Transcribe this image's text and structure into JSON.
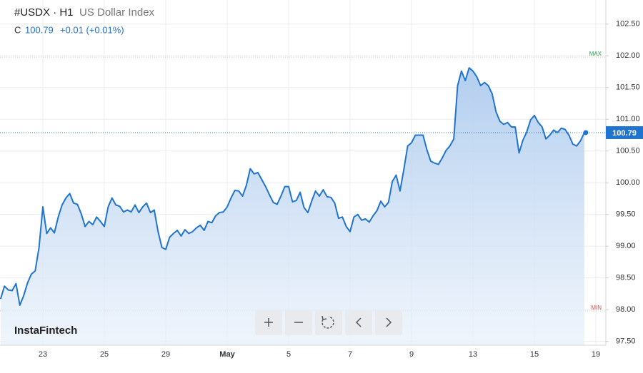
{
  "chart_data": {
    "type": "area",
    "title": "#USDX · H1",
    "subtitle": "US Dollar Index",
    "close_label": "C",
    "close": 100.79,
    "change": "+0.01 (+0.01%)",
    "brand": "InstaFintech",
    "color": "#1f74d0",
    "grid": true,
    "max_level": {
      "value": 101.98,
      "label": "MAX"
    },
    "min_level": {
      "value": 97.98,
      "label": "MIN"
    },
    "ylim": [
      97.44,
      102.88
    ],
    "yticks": [
      {
        "value": 97.5,
        "label": "97.50"
      },
      {
        "value": 98,
        "label": "98.00"
      },
      {
        "value": 98.5,
        "label": "98.50"
      },
      {
        "value": 99,
        "label": "99.00"
      },
      {
        "value": 99.5,
        "label": "99.50"
      },
      {
        "value": 100,
        "label": "100.00"
      },
      {
        "value": 100.5,
        "label": "100.50"
      },
      {
        "value": 101,
        "label": "101.00"
      },
      {
        "value": 101.5,
        "label": "101.50"
      },
      {
        "value": 102,
        "label": "102.00"
      },
      {
        "value": 102.5,
        "label": "102.50"
      }
    ],
    "categories": [
      null,
      null,
      null,
      null,
      null,
      null,
      null,
      null,
      null,
      null,
      null,
      "23",
      null,
      null,
      null,
      null,
      null,
      null,
      null,
      null,
      null,
      null,
      null,
      null,
      null,
      null,
      null,
      "25",
      null,
      null,
      null,
      null,
      null,
      null,
      null,
      null,
      null,
      null,
      null,
      null,
      null,
      null,
      null,
      "29",
      null,
      null,
      null,
      null,
      null,
      null,
      null,
      null,
      null,
      null,
      null,
      null,
      null,
      null,
      null,
      "May",
      null,
      null,
      null,
      null,
      null,
      null,
      null,
      null,
      null,
      null,
      null,
      null,
      null,
      null,
      null,
      "5",
      null,
      null,
      null,
      null,
      null,
      null,
      null,
      null,
      null,
      null,
      null,
      null,
      null,
      null,
      null,
      "7",
      null,
      null,
      null,
      null,
      null,
      null,
      null,
      null,
      null,
      null,
      null,
      null,
      null,
      null,
      null,
      "9",
      null,
      null,
      null,
      null,
      null,
      null,
      null,
      null,
      null,
      null,
      null,
      null,
      null,
      null,
      null,
      "13",
      null,
      null,
      null,
      null,
      null,
      null,
      null,
      null,
      null,
      null,
      null,
      null,
      null,
      null,
      null,
      "15",
      null,
      null,
      null,
      null,
      null,
      null,
      null,
      null,
      null,
      null,
      null,
      null,
      null,
      null,
      null,
      "19"
    ],
    "values": [
      98.17,
      98.37,
      98.31,
      98.3,
      98.41,
      98.07,
      98.22,
      98.42,
      98.56,
      98.61,
      98.98,
      99.62,
      99.2,
      99.29,
      99.21,
      99.46,
      99.65,
      99.76,
      99.83,
      99.68,
      99.66,
      99.51,
      99.31,
      99.39,
      99.34,
      99.46,
      99.39,
      99.31,
      99.62,
      99.76,
      99.65,
      99.63,
      99.54,
      99.57,
      99.54,
      99.65,
      99.53,
      99.62,
      99.68,
      99.53,
      99.57,
      99.23,
      98.98,
      98.95,
      99.14,
      99.2,
      99.25,
      99.16,
      99.26,
      99.2,
      99.23,
      99.29,
      99.33,
      99.25,
      99.39,
      99.37,
      99.48,
      99.53,
      99.54,
      99.62,
      99.76,
      99.88,
      99.87,
      99.79,
      99.96,
      100.22,
      100.14,
      100.16,
      100.05,
      99.94,
      99.81,
      99.69,
      99.66,
      99.79,
      99.94,
      99.94,
      99.7,
      99.72,
      99.85,
      99.61,
      99.53,
      99.71,
      99.87,
      99.79,
      99.89,
      99.78,
      99.77,
      99.68,
      99.44,
      99.46,
      99.31,
      99.23,
      99.46,
      99.5,
      99.41,
      99.43,
      99.38,
      99.48,
      99.56,
      99.71,
      99.62,
      99.69,
      100.02,
      100.12,
      99.87,
      100.21,
      100.58,
      100.63,
      100.75,
      100.75,
      100.75,
      100.52,
      100.34,
      100.31,
      100.29,
      100.39,
      100.51,
      100.58,
      100.69,
      101.53,
      101.76,
      101.61,
      101.81,
      101.76,
      101.67,
      101.53,
      101.58,
      101.53,
      101.4,
      101.12,
      100.97,
      100.92,
      100.95,
      100.88,
      100.88,
      100.47,
      100.67,
      100.8,
      100.99,
      101.06,
      100.95,
      100.88,
      100.69,
      100.75,
      100.83,
      100.79,
      100.86,
      100.84,
      100.75,
      100.61,
      100.58,
      100.66,
      100.79,
      null,
      null,
      null
    ]
  }
}
